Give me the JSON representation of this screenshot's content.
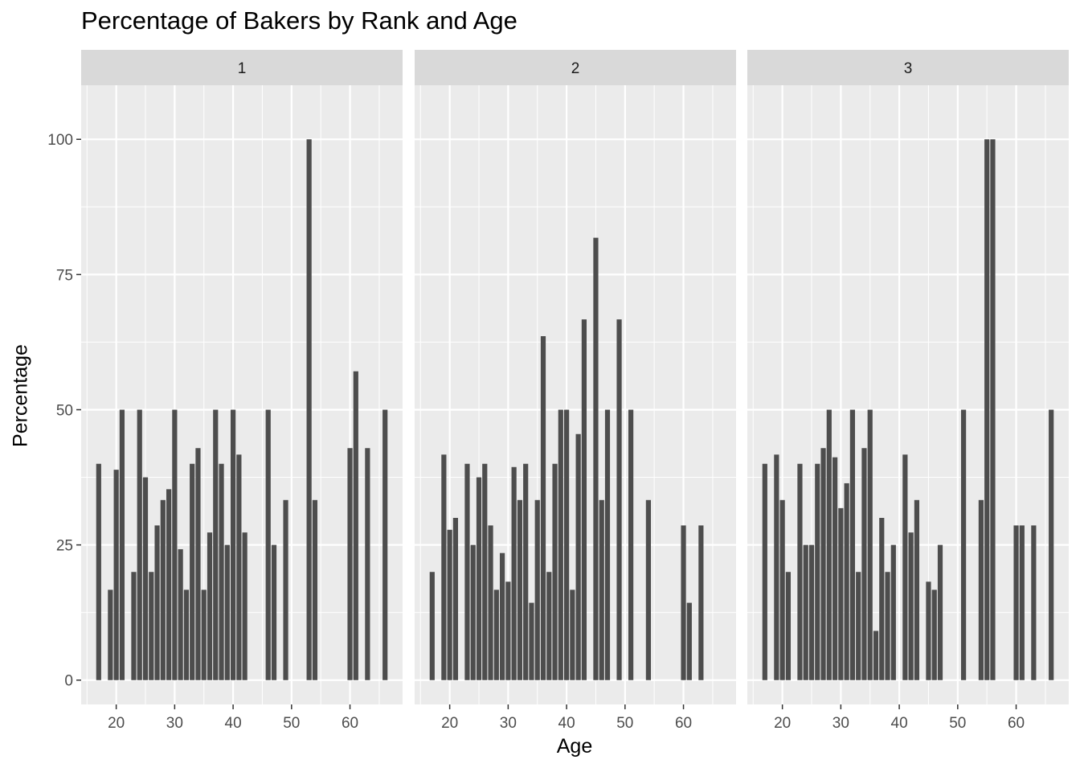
{
  "chart_data": {
    "type": "bar",
    "title": "Percentage of Bakers by Rank and Age",
    "xlabel": "Age",
    "ylabel": "Percentage",
    "xlim": [
      14,
      69
    ],
    "ylim": [
      -4.5,
      110
    ],
    "x_ticks": [
      20,
      30,
      40,
      50,
      60
    ],
    "y_ticks": [
      0,
      25,
      50,
      75,
      100
    ],
    "grid": true,
    "legend": "none",
    "bar_color": "#4d4d4d",
    "panel_background": "#ebebeb",
    "strip_background": "#d9d9d9",
    "facets": [
      {
        "label": "1",
        "x": [
          17,
          19,
          20,
          21,
          23,
          24,
          25,
          26,
          27,
          28,
          29,
          30,
          31,
          32,
          33,
          34,
          35,
          36,
          37,
          38,
          39,
          40,
          41,
          42,
          46,
          47,
          49,
          53,
          54,
          60,
          61,
          63,
          66
        ],
        "values": [
          40,
          16.7,
          38.9,
          50,
          20,
          50,
          37.5,
          20,
          28.6,
          33.3,
          35.3,
          50,
          24.2,
          16.7,
          40,
          42.9,
          16.7,
          27.3,
          50,
          40,
          25,
          50,
          41.7,
          27.3,
          50,
          25,
          33.3,
          100,
          33.3,
          42.9,
          57.1,
          42.9,
          50
        ]
      },
      {
        "label": "2",
        "x": [
          17,
          19,
          20,
          21,
          23,
          24,
          25,
          26,
          27,
          28,
          29,
          30,
          31,
          32,
          33,
          34,
          35,
          36,
          37,
          38,
          39,
          40,
          41,
          42,
          43,
          45,
          46,
          47,
          49,
          51,
          54,
          60,
          61,
          63
        ],
        "values": [
          20,
          41.7,
          27.8,
          30,
          40,
          25,
          37.5,
          40,
          28.6,
          16.7,
          23.5,
          18.2,
          39.4,
          33.3,
          40,
          14.3,
          33.3,
          63.6,
          20,
          40,
          50,
          50,
          16.7,
          45.5,
          66.7,
          81.8,
          33.3,
          50,
          66.7,
          50,
          33.3,
          28.6,
          14.3,
          28.6
        ]
      },
      {
        "label": "3",
        "x": [
          17,
          19,
          20,
          21,
          23,
          24,
          25,
          26,
          27,
          28,
          29,
          30,
          31,
          32,
          33,
          34,
          35,
          36,
          37,
          38,
          39,
          41,
          42,
          43,
          45,
          46,
          47,
          51,
          54,
          55,
          56,
          60,
          61,
          63,
          66
        ],
        "values": [
          40,
          41.7,
          33.3,
          20,
          40,
          25,
          25,
          40,
          42.9,
          50,
          41.2,
          31.8,
          36.4,
          50,
          20,
          42.9,
          50,
          9.1,
          30,
          20,
          25,
          41.7,
          27.3,
          33.3,
          18.2,
          16.7,
          25,
          50,
          33.3,
          100,
          100,
          28.6,
          28.6,
          28.6,
          50
        ]
      }
    ]
  }
}
